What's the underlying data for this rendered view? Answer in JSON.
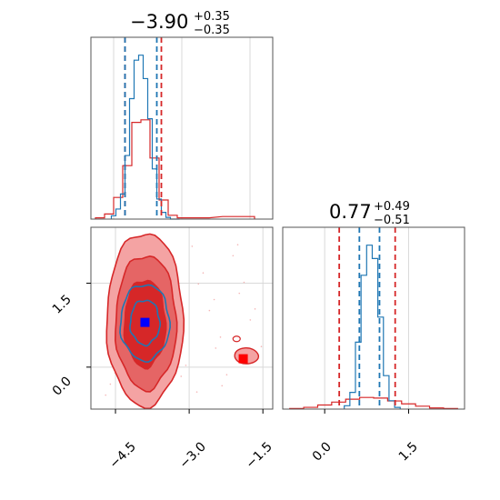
{
  "colors": {
    "blue": "#1f77b4",
    "red": "#d62728",
    "red_fill": "#ee8e8e",
    "grid": "#d9d9d9",
    "axis": "#555555"
  },
  "chart_data": {
    "type": "corner",
    "panels": [
      {
        "id": "param1-marginal",
        "type": "histogram",
        "title": {
          "value": "−3.90",
          "plus": "+0.35",
          "minus": "−0.35"
        },
        "xlim": [
          -5.0,
          -1.0
        ],
        "grid": true,
        "blue_hist": {
          "x": [
            -4.5,
            -4.4,
            -4.3,
            -4.2,
            -4.1,
            -4.0,
            -3.9,
            -3.8,
            -3.7,
            -3.6,
            -3.5,
            -3.4,
            -3.3,
            -3.2,
            -3.1
          ],
          "density": [
            0.02,
            0.06,
            0.15,
            0.38,
            0.72,
            0.95,
            0.98,
            0.84,
            0.6,
            0.3,
            0.12,
            0.04,
            0.01,
            0.0,
            0.0
          ],
          "lines": [
            -4.25,
            -3.55
          ]
        },
        "red_hist": {
          "x": [
            -4.8,
            -4.6,
            -4.4,
            -4.2,
            -4.0,
            -3.8,
            -3.6,
            -3.4,
            -3.2,
            -3.0,
            -2.5,
            -2.0,
            -1.5
          ],
          "density": [
            0.01,
            0.04,
            0.17,
            0.42,
            0.76,
            0.78,
            0.48,
            0.15,
            0.03,
            0.01,
            0.01,
            0.02,
            0.02
          ],
          "lines": [
            -4.25,
            -3.45
          ]
        }
      },
      {
        "id": "param2-marginal",
        "type": "histogram",
        "title": {
          "value": "0.77",
          "plus": "+0.49",
          "minus": "−0.51"
        },
        "xlim": [
          -0.75,
          2.5
        ],
        "grid": true,
        "xticks": [
          "0.0",
          "1.5"
        ],
        "blue_hist": {
          "x": [
            0.4,
            0.5,
            0.6,
            0.7,
            0.8,
            0.9,
            1.0,
            1.1,
            1.2,
            1.3
          ],
          "density": [
            0.02,
            0.1,
            0.4,
            0.8,
            0.98,
            0.9,
            0.55,
            0.2,
            0.05,
            0.01
          ],
          "lines": [
            0.62,
            0.98
          ]
        },
        "red_hist": {
          "x": [
            -0.5,
            -0.25,
            0.0,
            0.25,
            0.5,
            0.75,
            1.0,
            1.25,
            1.5,
            1.75,
            2.0,
            2.25
          ],
          "density": [
            0.01,
            0.03,
            0.07,
            0.12,
            0.17,
            0.2,
            0.19,
            0.14,
            0.09,
            0.05,
            0.02,
            0.01
          ],
          "lines": [
            0.26,
            1.26
          ]
        }
      },
      {
        "id": "joint",
        "type": "contour",
        "xlim": [
          -5.0,
          -1.3
        ],
        "ylim": [
          -0.75,
          2.5
        ],
        "xticks": [
          "−4.5",
          "−3.0",
          "−1.5"
        ],
        "yticks": [
          "0.0",
          "1.5"
        ],
        "grid": true,
        "red_contours": [
          {
            "level": "outer",
            "center": [
              -3.9,
              0.85
            ],
            "radius": [
              0.78,
              1.55
            ]
          },
          {
            "level": "mid",
            "center": [
              -3.88,
              0.8
            ],
            "radius": [
              0.62,
              1.2
            ]
          },
          {
            "level": "inner",
            "center": [
              -3.9,
              0.78
            ],
            "radius": [
              0.42,
              0.78
            ]
          }
        ],
        "blue_contours": [
          {
            "level": "outer",
            "center": [
              -3.9,
              0.8
            ],
            "radius": [
              0.5,
              0.68
            ]
          },
          {
            "level": "inner",
            "center": [
              -3.9,
              0.8
            ],
            "radius": [
              0.3,
              0.4
            ]
          }
        ],
        "secondary_mode": {
          "center": [
            -1.85,
            0.18
          ]
        },
        "blue_marker": [
          -3.9,
          0.8
        ],
        "red_marker": [
          -1.9,
          0.15
        ]
      }
    ]
  }
}
